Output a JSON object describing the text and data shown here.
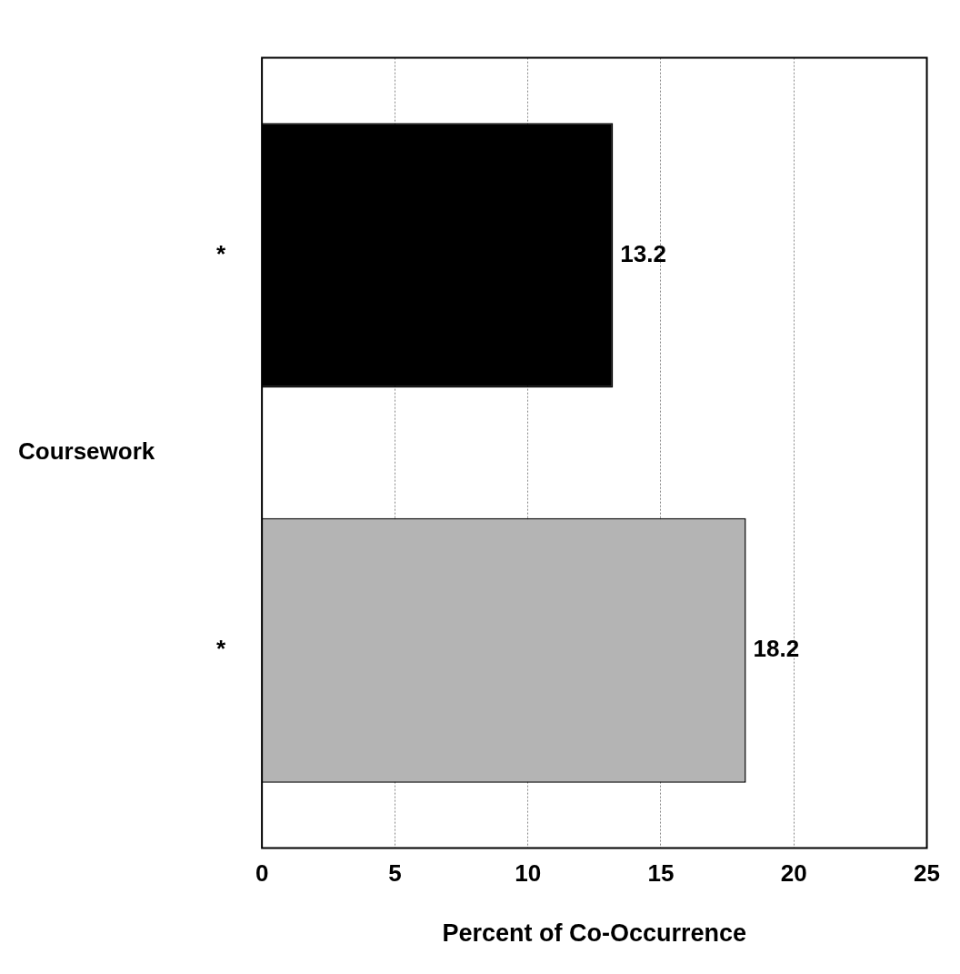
{
  "chart_data": {
    "type": "bar",
    "orientation": "horizontal",
    "categories": [
      "*",
      "*"
    ],
    "values": [
      13.2,
      18.2
    ],
    "colors": [
      "#000000",
      "#b4b4b4"
    ],
    "ylabel": "Coursework",
    "xlabel": "Percent of Co-Occurrence",
    "xlim": [
      0,
      25
    ],
    "xticks": [
      0,
      5,
      10,
      15,
      20,
      25
    ],
    "grid": "x",
    "data_labels": true,
    "legend": false
  }
}
